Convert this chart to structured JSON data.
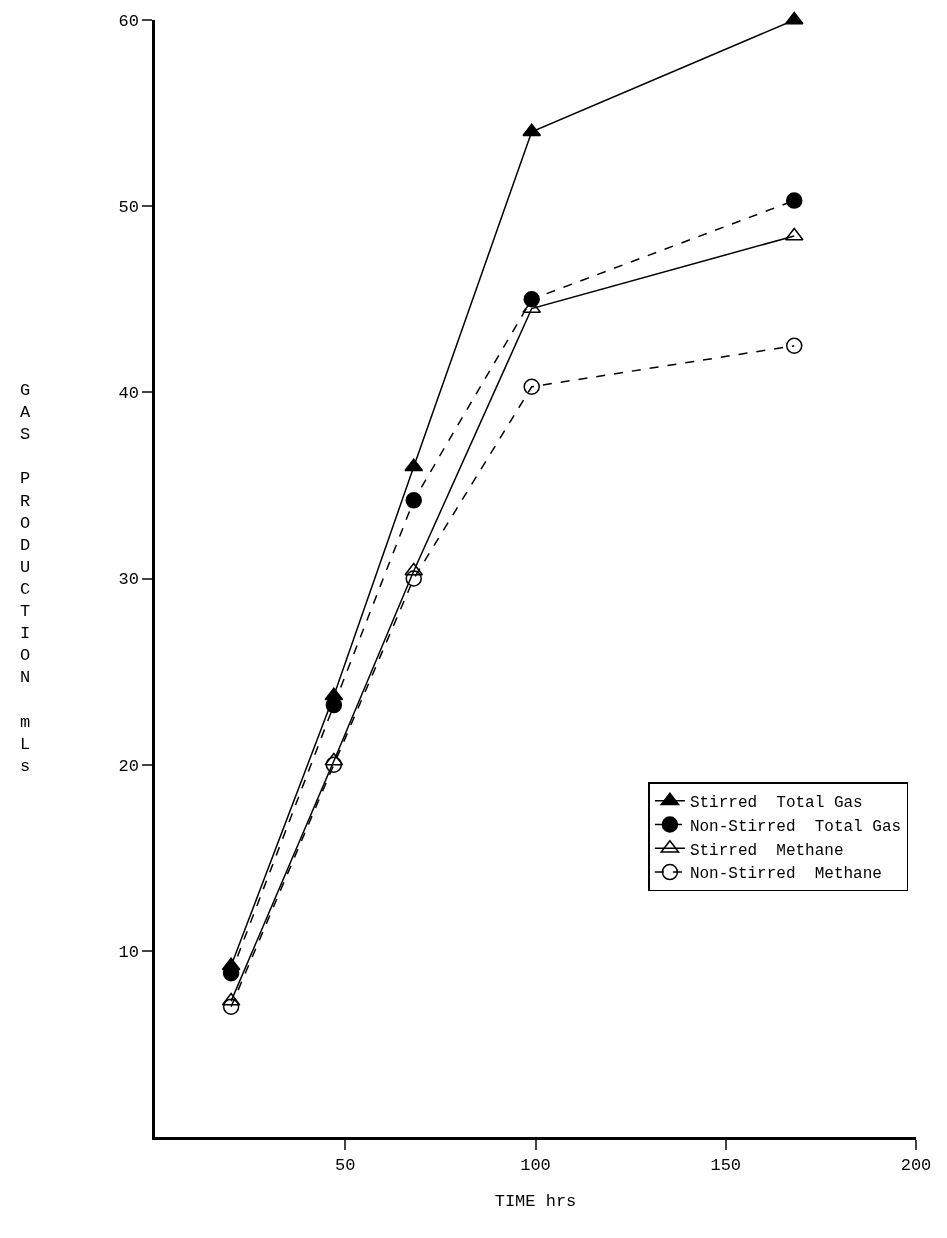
{
  "chart_data": {
    "type": "line",
    "xlabel": "TIME hrs",
    "ylabel": "GAS PRODUCTION mLs",
    "x": [
      20,
      47,
      68,
      99,
      168
    ],
    "series": [
      {
        "name": "Stirred  Total Gas",
        "color": "#000000",
        "marker": "triangle",
        "line_style": "solid",
        "values": [
          9.2,
          23.7,
          36.0,
          54.0,
          60.0
        ]
      },
      {
        "name": "Non-Stirred  Total Gas",
        "color": "#000000",
        "marker": "circle",
        "line_style": "dashed",
        "values": [
          8.8,
          23.2,
          34.2,
          45.0,
          50.3
        ]
      },
      {
        "name": "Stirred  Methane",
        "color": "#000000",
        "marker": "triangle-open",
        "line_style": "solid",
        "values": [
          7.3,
          20.2,
          30.4,
          44.5,
          48.4
        ]
      },
      {
        "name": "Non-Stirred  Methane",
        "color": "#000000",
        "marker": "circle-open",
        "line_style": "dashed",
        "values": [
          7.0,
          20.0,
          30.0,
          40.3,
          42.5
        ]
      }
    ],
    "xlim": [
      0,
      200
    ],
    "xticks": [
      50,
      100,
      150,
      200
    ],
    "ylim": [
      0,
      60
    ],
    "yticks": [
      10,
      20,
      30,
      40,
      50,
      60
    ],
    "grid": false,
    "legend": "bottom right"
  }
}
